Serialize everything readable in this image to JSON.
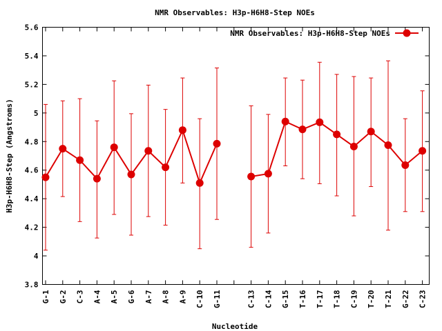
{
  "chart_data": {
    "type": "line",
    "title": "NMR Observables: H3p-H6H8-Step NOEs",
    "xlabel": "Nucleotide",
    "ylabel": "H3p-H6H8-Step (Angstroms)",
    "ylim": [
      3.8,
      5.6
    ],
    "yticks": [
      "3.8",
      "4",
      "4.2",
      "4.4",
      "4.6",
      "4.8",
      "5",
      "5.2",
      "5.4",
      "5.6"
    ],
    "categories": [
      "G-1",
      "G-2",
      "C-3",
      "A-4",
      "A-5",
      "G-6",
      "A-7",
      "A-8",
      "A-9",
      "C-10",
      "G-11",
      "",
      "C-13",
      "C-14",
      "G-15",
      "T-16",
      "T-17",
      "T-18",
      "C-19",
      "T-20",
      "T-21",
      "G-22",
      "C-23"
    ],
    "series": [
      {
        "name": "NMR Observables: H3p-H6H8-Step NOEs",
        "color": "#dd0000",
        "values": [
          4.55,
          4.75,
          4.67,
          4.54,
          4.76,
          4.57,
          4.735,
          4.62,
          4.88,
          4.51,
          4.785,
          null,
          4.555,
          4.575,
          4.94,
          4.885,
          4.935,
          4.85,
          4.765,
          4.87,
          4.775,
          4.635,
          4.735
        ],
        "err_low": [
          4.04,
          4.415,
          4.24,
          4.125,
          4.29,
          4.145,
          4.275,
          4.215,
          4.51,
          4.05,
          4.255,
          null,
          4.06,
          4.16,
          4.63,
          4.54,
          4.505,
          4.42,
          4.28,
          4.485,
          4.18,
          4.31,
          4.31
        ],
        "err_high": [
          5.06,
          5.085,
          5.1,
          4.945,
          5.225,
          4.995,
          5.195,
          5.025,
          5.245,
          4.96,
          5.315,
          null,
          5.05,
          4.99,
          5.245,
          5.23,
          5.355,
          5.27,
          5.255,
          5.245,
          5.365,
          4.96,
          5.155
        ]
      }
    ],
    "legend_position": "top-right",
    "grid": false
  }
}
